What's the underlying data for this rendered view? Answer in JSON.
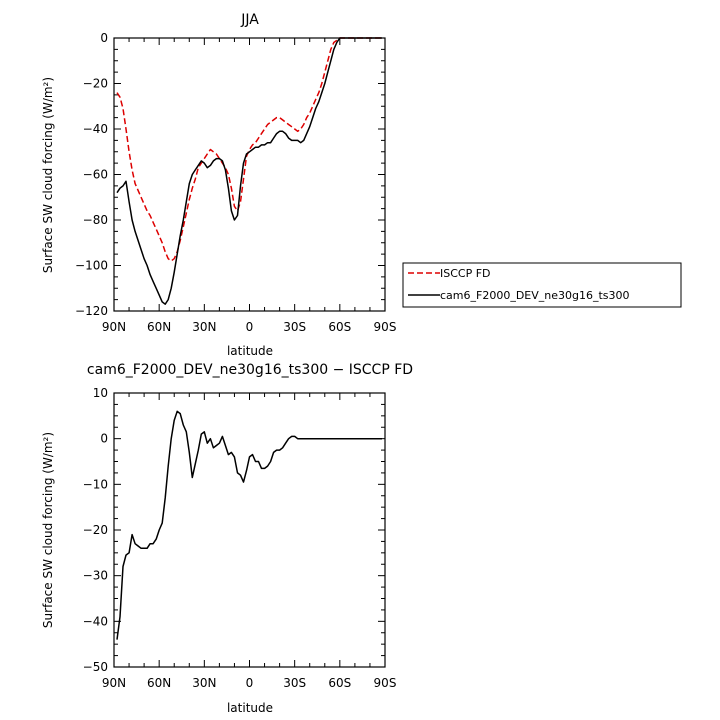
{
  "chart_data": [
    {
      "type": "line",
      "title": "JJA",
      "xlabel": "latitude",
      "ylabel": "Surface SW cloud forcing (W/m²)",
      "xlim": [
        90,
        -90
      ],
      "ylim": [
        -120,
        0
      ],
      "x_ticks": [
        90,
        60,
        30,
        0,
        -30,
        -60,
        -90
      ],
      "x_tick_labels": [
        "90N",
        "60N",
        "30N",
        "0",
        "30S",
        "60S",
        "90S"
      ],
      "y_ticks": [
        0,
        -20,
        -40,
        -60,
        -80,
        -100,
        -120
      ],
      "y_tick_labels": [
        "0",
        "−20",
        "−40",
        "−60",
        "−80",
        "−100",
        "−120"
      ],
      "legend": "outside right",
      "grid": false,
      "series": [
        {
          "name": "ISCCP FD",
          "color": "#dd0000",
          "dash": "dashed",
          "x": [
            88,
            86,
            84,
            82,
            80,
            78,
            76,
            74,
            72,
            70,
            68,
            66,
            64,
            62,
            60,
            58,
            56,
            54,
            52,
            50,
            48,
            46,
            44,
            42,
            40,
            38,
            36,
            34,
            32,
            30,
            28,
            26,
            24,
            22,
            20,
            18,
            16,
            14,
            12,
            10,
            8,
            6,
            4,
            2,
            0,
            -2,
            -4,
            -6,
            -8,
            -10,
            -12,
            -14,
            -16,
            -18,
            -20,
            -22,
            -24,
            -26,
            -28,
            -30,
            -32,
            -34,
            -36,
            -38,
            -40,
            -42,
            -44,
            -46,
            -48,
            -50,
            -52,
            -54,
            -56,
            -58,
            -60,
            -62,
            -64,
            -66,
            -68,
            -70,
            -72,
            -74,
            -76,
            -78,
            -80,
            -82,
            -84,
            -86,
            -88
          ],
          "values": [
            -24,
            -26,
            -31,
            -40,
            -50,
            -58,
            -64,
            -67,
            -70,
            -73,
            -76,
            -78,
            -81,
            -84,
            -87,
            -90,
            -94,
            -97,
            -98,
            -97,
            -94,
            -89,
            -83,
            -77,
            -71,
            -66,
            -62,
            -57,
            -55,
            -53,
            -51,
            -49,
            -50,
            -51,
            -53,
            -55,
            -57,
            -60,
            -66,
            -74,
            -76,
            -72,
            -62,
            -52,
            -49,
            -47,
            -46,
            -44,
            -42,
            -40,
            -38,
            -37,
            -36,
            -35,
            -35,
            -36,
            -37,
            -38,
            -39,
            -40,
            -41,
            -40,
            -38,
            -35,
            -33,
            -30,
            -27,
            -24,
            -20,
            -15,
            -10,
            -5,
            -2,
            -1,
            0,
            0,
            0,
            0,
            0,
            0,
            0,
            0,
            0,
            0,
            0,
            0,
            0,
            0,
            0
          ]
        },
        {
          "name": "cam6_F2000_DEV_ne30g16_ts300",
          "color": "#000000",
          "dash": "solid",
          "x": [
            88,
            86,
            84,
            82,
            80,
            78,
            76,
            74,
            72,
            70,
            68,
            66,
            64,
            62,
            60,
            58,
            56,
            54,
            52,
            50,
            48,
            46,
            44,
            42,
            40,
            38,
            36,
            34,
            32,
            30,
            28,
            26,
            24,
            22,
            20,
            18,
            16,
            14,
            12,
            10,
            8,
            6,
            4,
            2,
            0,
            -2,
            -4,
            -6,
            -8,
            -10,
            -12,
            -14,
            -16,
            -18,
            -20,
            -22,
            -24,
            -26,
            -28,
            -30,
            -32,
            -34,
            -36,
            -38,
            -40,
            -42,
            -44,
            -46,
            -48,
            -50,
            -52,
            -54,
            -56,
            -58,
            -60,
            -62,
            -64,
            -66,
            -68,
            -70,
            -72,
            -74,
            -76,
            -78,
            -80,
            -82,
            -84,
            -86,
            -88
          ],
          "values": [
            -68,
            -66,
            -65,
            -63,
            -72,
            -80,
            -85,
            -89,
            -93,
            -97,
            -100,
            -104,
            -107,
            -110,
            -113,
            -116,
            -117,
            -115,
            -110,
            -103,
            -95,
            -87,
            -80,
            -72,
            -64,
            -60,
            -58,
            -56,
            -54,
            -55,
            -57,
            -56,
            -54,
            -53,
            -53,
            -54,
            -58,
            -66,
            -76,
            -80,
            -78,
            -65,
            -55,
            -51,
            -50,
            -49,
            -48,
            -48,
            -47,
            -47,
            -46,
            -46,
            -44,
            -42,
            -41,
            -41,
            -42,
            -44,
            -45,
            -45,
            -45,
            -46,
            -45,
            -42,
            -39,
            -35,
            -31,
            -28,
            -24,
            -20,
            -15,
            -10,
            -5,
            -2,
            0,
            0,
            0,
            0,
            0,
            0,
            0,
            0,
            0,
            0,
            0,
            0,
            0,
            0,
            0
          ]
        }
      ]
    },
    {
      "type": "line",
      "title": "cam6_F2000_DEV_ne30g16_ts300 − ISCCP FD",
      "xlabel": "latitude",
      "ylabel": "Surface SW cloud forcing (W/m²)",
      "xlim": [
        90,
        -90
      ],
      "ylim": [
        -50,
        10
      ],
      "x_ticks": [
        90,
        60,
        30,
        0,
        -30,
        -60,
        -90
      ],
      "x_tick_labels": [
        "90N",
        "60N",
        "30N",
        "0",
        "30S",
        "60S",
        "90S"
      ],
      "y_ticks": [
        10,
        0,
        -10,
        -20,
        -30,
        -40,
        -50
      ],
      "y_tick_labels": [
        "10",
        "0",
        "−10",
        "−20",
        "−30",
        "−40",
        "−50"
      ],
      "grid": false,
      "series": [
        {
          "color": "#000000",
          "dash": "solid",
          "x": [
            88,
            86,
            84,
            82,
            80,
            78,
            76,
            74,
            72,
            70,
            68,
            66,
            64,
            62,
            60,
            58,
            56,
            54,
            52,
            50,
            48,
            46,
            44,
            42,
            40,
            38,
            36,
            34,
            32,
            30,
            28,
            26,
            24,
            22,
            20,
            18,
            16,
            14,
            12,
            10,
            8,
            6,
            4,
            2,
            0,
            -2,
            -4,
            -6,
            -8,
            -10,
            -12,
            -14,
            -16,
            -18,
            -20,
            -22,
            -24,
            -26,
            -28,
            -30,
            -32,
            -34,
            -36,
            -38,
            -40,
            -42,
            -44,
            -46,
            -48,
            -50,
            -52,
            -54,
            -56,
            -58,
            -60,
            -62,
            -64,
            -66,
            -68,
            -70,
            -72,
            -74,
            -76,
            -78,
            -80,
            -82,
            -84,
            -86,
            -88
          ],
          "values": [
            -44,
            -39,
            -28,
            -25.5,
            -25,
            -21,
            -23,
            -23.5,
            -24,
            -24,
            -24,
            -23,
            -23,
            -22,
            -20,
            -18.5,
            -13,
            -6,
            0,
            4,
            6,
            5.5,
            3,
            1.5,
            -3,
            -8.5,
            -5.5,
            -2.5,
            1,
            1.5,
            -1,
            0,
            -2,
            -1.5,
            -1,
            0.5,
            -1.5,
            -3.5,
            -3,
            -4,
            -7.5,
            -8,
            -9.5,
            -7,
            -4,
            -3.5,
            -5,
            -5,
            -6.5,
            -6.5,
            -6,
            -5,
            -3,
            -2.5,
            -2.5,
            -2,
            -1,
            0,
            0.5,
            0.5,
            0,
            0,
            0,
            0,
            0,
            0,
            0,
            0,
            0,
            0,
            0,
            0,
            0,
            0,
            0,
            0,
            0,
            0,
            0,
            0,
            0,
            0,
            0,
            0,
            0,
            0,
            0,
            0,
            0
          ]
        }
      ]
    }
  ]
}
